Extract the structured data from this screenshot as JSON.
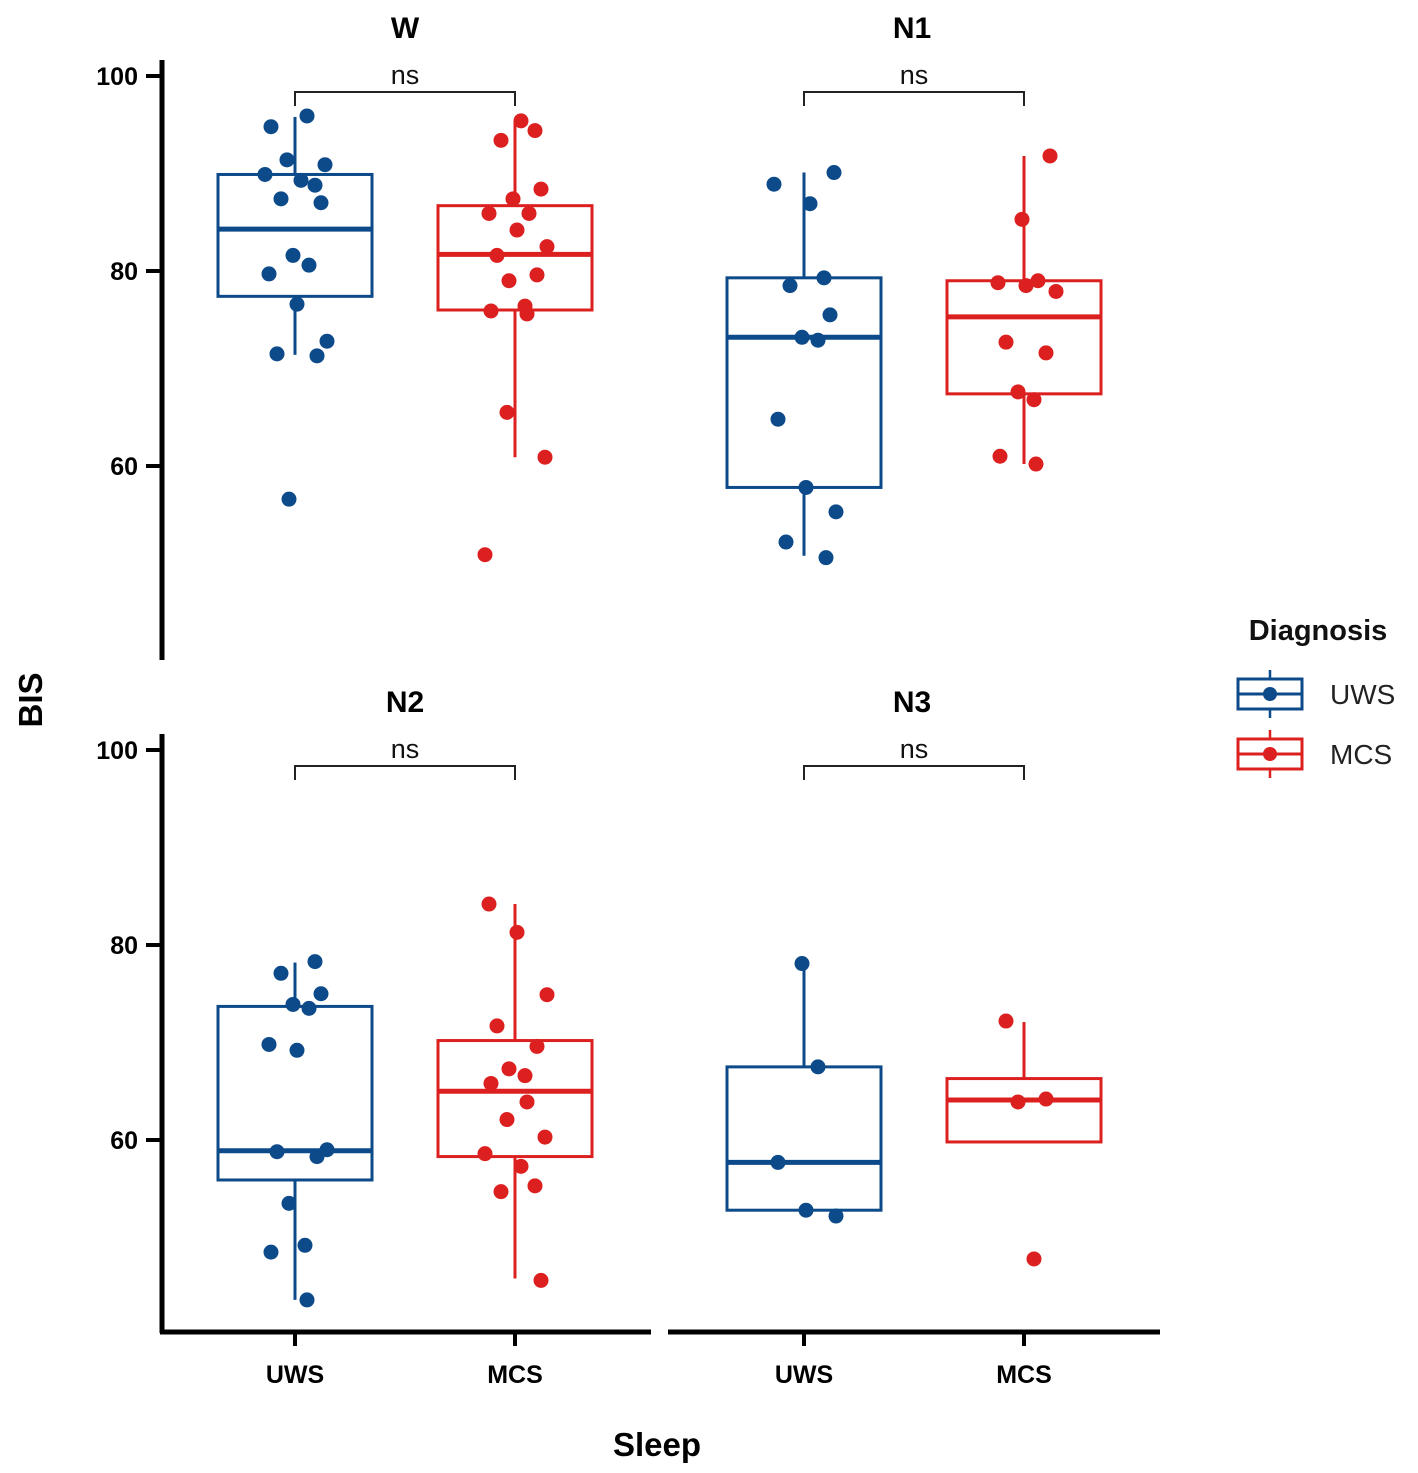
{
  "chart_data": {
    "type": "box",
    "facet_variable": "Sleep",
    "xlabel": "Sleep",
    "ylabel": "BIS",
    "ylim": [
      40,
      101
    ],
    "yticks": [
      60,
      80,
      100
    ],
    "categories": [
      "UWS",
      "MCS"
    ],
    "legend": {
      "title": "Diagnosis",
      "position": "right",
      "items": [
        {
          "name": "UWS",
          "color": "#0d4a8a"
        },
        {
          "name": "MCS",
          "color": "#dc2020"
        }
      ]
    },
    "panels": [
      {
        "title": "W",
        "significance": "ns",
        "groups": [
          {
            "name": "UWS",
            "box": {
              "q1": 77.4,
              "median": 84.3,
              "q3": 89.9,
              "whisker_low": 71.4,
              "whisker_high": 95.8
            },
            "points": [
              94.8,
              95.9,
              91.4,
              90.9,
              89.9,
              89.3,
              88.8,
              87.4,
              87.0,
              81.6,
              80.6,
              79.7,
              76.6,
              72.8,
              71.5,
              71.3,
              56.6
            ]
          },
          {
            "name": "MCS",
            "box": {
              "q1": 76.0,
              "median": 81.7,
              "q3": 86.7,
              "whisker_low": 60.9,
              "whisker_high": 95.4
            },
            "points": [
              95.4,
              94.4,
              93.4,
              88.4,
              87.4,
              85.9,
              85.9,
              84.2,
              82.5,
              81.6,
              79.6,
              79.0,
              76.4,
              75.9,
              75.6,
              65.5,
              60.9,
              50.9
            ]
          }
        ]
      },
      {
        "title": "N1",
        "significance": "ns",
        "groups": [
          {
            "name": "UWS",
            "box": {
              "q1": 57.8,
              "median": 73.2,
              "q3": 79.3,
              "whisker_low": 50.8,
              "whisker_high": 90.1
            },
            "points": [
              90.1,
              88.9,
              86.9,
              79.3,
              78.5,
              75.5,
              73.2,
              72.9,
              64.8,
              57.8,
              55.3,
              52.2,
              50.6
            ]
          },
          {
            "name": "MCS",
            "box": {
              "q1": 67.4,
              "median": 75.3,
              "q3": 79.0,
              "whisker_low": 60.2,
              "whisker_high": 91.8
            },
            "points": [
              91.8,
              85.3,
              79.0,
              78.8,
              78.5,
              77.9,
              72.7,
              71.6,
              67.6,
              66.8,
              61.0,
              60.2
            ]
          }
        ]
      },
      {
        "title": "N2",
        "significance": "ns",
        "groups": [
          {
            "name": "UWS",
            "box": {
              "q1": 55.9,
              "median": 58.9,
              "q3": 73.7,
              "whisker_low": 43.6,
              "whisker_high": 78.2
            },
            "points": [
              78.3,
              77.1,
              75.0,
              73.9,
              73.5,
              69.8,
              69.2,
              59.0,
              58.8,
              58.3,
              53.5,
              49.2,
              48.5,
              43.6
            ]
          },
          {
            "name": "MCS",
            "box": {
              "q1": 58.3,
              "median": 65.0,
              "q3": 70.2,
              "whisker_low": 45.8,
              "whisker_high": 84.2
            },
            "points": [
              84.2,
              81.3,
              74.9,
              71.7,
              69.6,
              67.3,
              66.6,
              65.8,
              63.9,
              62.1,
              60.3,
              58.6,
              57.3,
              55.3,
              54.7,
              45.6
            ]
          }
        ]
      },
      {
        "title": "N3",
        "significance": "ns",
        "groups": [
          {
            "name": "UWS",
            "box": {
              "q1": 52.8,
              "median": 57.7,
              "q3": 67.5,
              "whisker_low": 52.8,
              "whisker_high": 78.0
            },
            "points": [
              78.1,
              67.5,
              57.7,
              52.8,
              52.2
            ]
          },
          {
            "name": "MCS",
            "box": {
              "q1": 59.8,
              "median": 64.1,
              "q3": 66.3,
              "whisker_low": 59.8,
              "whisker_high": 72.1
            },
            "points": [
              72.2,
              64.2,
              63.9,
              47.8
            ]
          }
        ]
      }
    ]
  }
}
